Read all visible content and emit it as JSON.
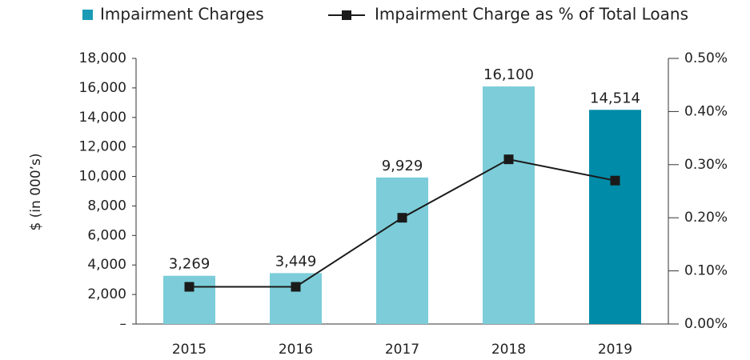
{
  "chart_data": {
    "type": "bar",
    "y_label": "$ (in 000’s)",
    "categories": [
      "2015",
      "2016",
      "2017",
      "2018",
      "2019"
    ],
    "series": [
      {
        "name": "Impairment Charges",
        "type": "bar",
        "color": "#1a9bb5",
        "colors": [
          "#7ccdd9",
          "#7ccdd9",
          "#7ccdd9",
          "#7ccdd9",
          "#008ba8"
        ],
        "values": [
          3269,
          3449,
          9929,
          16100,
          14514
        ],
        "value_labels": [
          "3,269",
          "3,449",
          "9,929",
          "16,100",
          "14,514"
        ]
      },
      {
        "name": "Impairment Charge as % of Total Loans",
        "type": "line",
        "axis": "y2",
        "color": "#1a1a1a",
        "values": [
          0.07,
          0.07,
          0.2,
          0.31,
          0.27
        ]
      }
    ],
    "ylim": [
      0,
      18000
    ],
    "yticks": [
      {
        "value": 0,
        "label": "–"
      },
      {
        "value": 2000,
        "label": "2,000"
      },
      {
        "value": 4000,
        "label": "4,000"
      },
      {
        "value": 6000,
        "label": "6,000"
      },
      {
        "value": 8000,
        "label": "8,000"
      },
      {
        "value": 10000,
        "label": "10,000"
      },
      {
        "value": 12000,
        "label": "12,000"
      },
      {
        "value": 14000,
        "label": "14,000"
      },
      {
        "value": 16000,
        "label": "16,000"
      },
      {
        "value": 18000,
        "label": "18,000"
      }
    ],
    "y2lim": [
      0,
      0.5
    ],
    "y2ticks": [
      {
        "value": 0,
        "label": "0.00%"
      },
      {
        "value": 0.1,
        "label": "0.10%"
      },
      {
        "value": 0.2,
        "label": "0.20%"
      },
      {
        "value": 0.3,
        "label": "0.30%"
      },
      {
        "value": 0.4,
        "label": "0.40%"
      },
      {
        "value": 0.5,
        "label": "0.50%"
      }
    ],
    "legend": "top"
  }
}
